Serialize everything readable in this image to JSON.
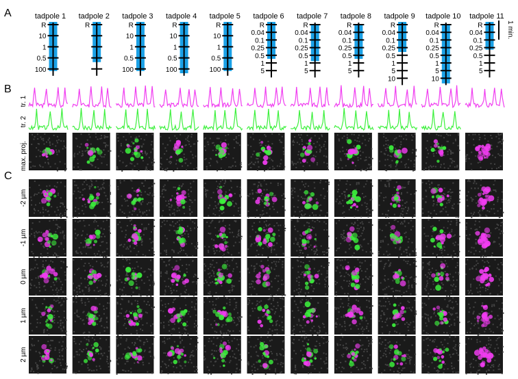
{
  "panels": {
    "a": "A",
    "b": "B",
    "c": "C"
  },
  "scale_bar_label": "1 min.",
  "colors": {
    "blue": "#1ba1e6",
    "magenta": "#f03cf0",
    "green": "#3cf03c",
    "tile_bg": "#1a1a1a"
  },
  "row_labels": {
    "trace1": "tr. 1",
    "trace2": "tr. 2",
    "maxproj": "max. proj.",
    "z": [
      "-2 µm",
      "-1 µm",
      "0 µm",
      "1 µm",
      "2 µm"
    ]
  },
  "tadpoles": [
    {
      "name": "tadpole 1",
      "ticks": [
        "R",
        "10",
        "1",
        "0.5",
        "100"
      ],
      "blue": [
        0,
        4
      ],
      "has_tr2": true
    },
    {
      "name": "tadpole 2",
      "ticks": [
        "R",
        "",
        "",
        "",
        ""
      ],
      "blue": [
        0,
        3.2
      ],
      "has_tr2": true
    },
    {
      "name": "tadpole 3",
      "ticks": [
        "R",
        "10",
        "1",
        "0.5",
        "100"
      ],
      "blue": [
        0,
        4
      ],
      "has_tr2": true
    },
    {
      "name": "tadpole 4",
      "ticks": [
        "R",
        "10",
        "1",
        "0.5",
        "100"
      ],
      "blue": [
        0,
        4.2
      ],
      "has_tr2": true
    },
    {
      "name": "tadpole 5",
      "ticks": [
        "R",
        "10",
        "1",
        "0.5",
        "100"
      ],
      "blue": [
        0,
        4
      ],
      "has_tr2": true
    },
    {
      "name": "tadpole 6",
      "ticks": [
        "R",
        "0.04",
        "0.1",
        "0.25",
        "0.5",
        "1",
        "5"
      ],
      "blue": [
        0,
        4.2
      ],
      "has_tr2": true
    },
    {
      "name": "tadpole 7",
      "ticks": [
        "R",
        "0.04",
        "0.1",
        "0.25",
        "0.5",
        "1",
        "5"
      ],
      "blue": [
        0.3,
        4.5
      ],
      "has_tr2": true
    },
    {
      "name": "tadpole 8",
      "ticks": [
        "R",
        "0.04",
        "0.1",
        "0.25",
        "0.5",
        "1",
        "5"
      ],
      "blue": [
        0.3,
        4.2
      ],
      "has_tr2": true
    },
    {
      "name": "tadpole 9",
      "ticks": [
        "R",
        "0.04",
        "0.1",
        "0.25",
        "0.5",
        "1",
        "5",
        "10"
      ],
      "blue": [
        0,
        3.3
      ],
      "has_tr2": true
    },
    {
      "name": "tadpole 10",
      "ticks": [
        "R",
        "0.04",
        "0.1",
        "0.25",
        "0.5",
        "1",
        "5",
        "10"
      ],
      "blue": [
        0.3,
        7.4
      ],
      "has_tr2": true
    },
    {
      "name": "tadpole 11",
      "ticks": [
        "R",
        "0.04",
        "0.1",
        "0.25",
        "0.5",
        "1",
        "5"
      ],
      "blue": [
        0,
        3
      ],
      "has_tr2": false
    }
  ]
}
